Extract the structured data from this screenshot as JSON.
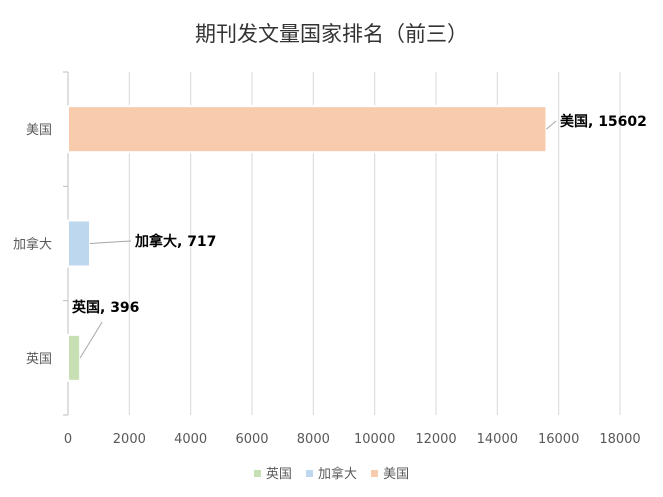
{
  "chart_data": {
    "type": "bar",
    "orientation": "horizontal",
    "title": "期刊发文量国家排名（前三）",
    "categories": [
      "英国",
      "加拿大",
      "美国"
    ],
    "values": [
      396,
      717,
      15602
    ],
    "colors": [
      "#c6e0b4",
      "#bdd7ee",
      "#f8cbad"
    ],
    "data_labels": [
      "英国, 396",
      "加拿大, 717",
      "美国, 15602"
    ],
    "xlim": [
      0,
      18000
    ],
    "x_ticks": [
      "0",
      "2000",
      "4000",
      "6000",
      "8000",
      "10000",
      "12000",
      "14000",
      "16000",
      "18000"
    ],
    "grid": true,
    "legend": {
      "position": "bottom",
      "entries": [
        "英国",
        "加拿大",
        "美国"
      ]
    }
  }
}
